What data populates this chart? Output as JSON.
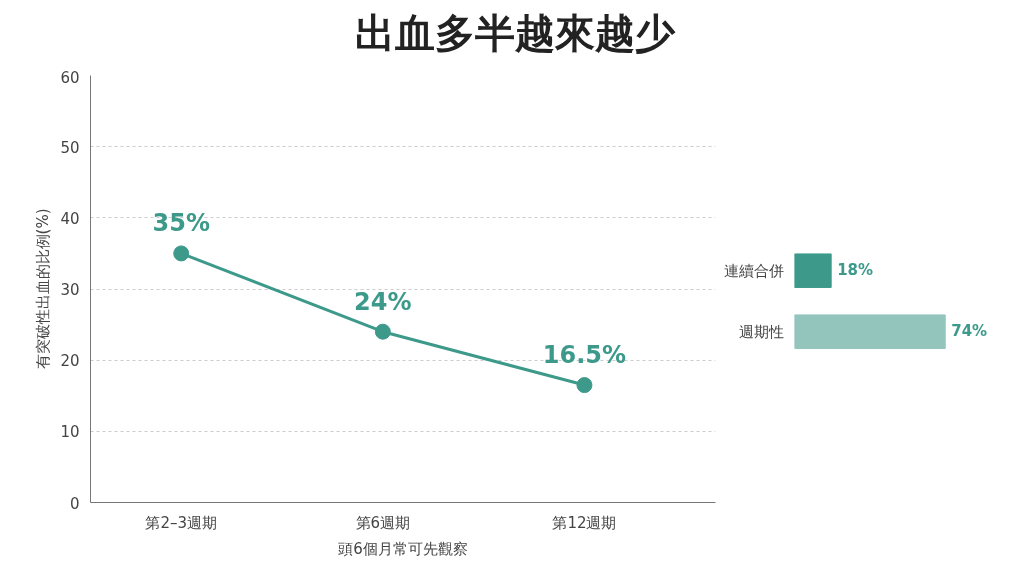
{
  "chart_data": [
    {
      "type": "line",
      "title": "出血多半越來越少",
      "xlabel": "頭6個月常可先觀察",
      "ylabel": "有突破性出血的比例(%)",
      "categories": [
        "第2–3週期",
        "第6週期",
        "第12週期"
      ],
      "series": [
        {
          "color": "#3d9a8b",
          "values": [
            35,
            24,
            16.5
          ]
        }
      ],
      "ylim": [
        0,
        60
      ],
      "yticks": [
        0,
        10,
        20,
        30,
        40,
        50,
        60
      ],
      "grid": "y",
      "marker": "circle",
      "line_style": "solid",
      "value_labels": [
        "35%",
        "24%",
        "16.5%"
      ]
    },
    {
      "type": "bar",
      "orientation": "horizontal",
      "categories": [
        "連續合併",
        "週期性"
      ],
      "values": [
        18,
        74
      ],
      "colors": [
        "#3d9a8b",
        "#93c5bd"
      ],
      "value_labels": [
        "18%",
        "74%"
      ],
      "tick_labels": "y"
    }
  ]
}
